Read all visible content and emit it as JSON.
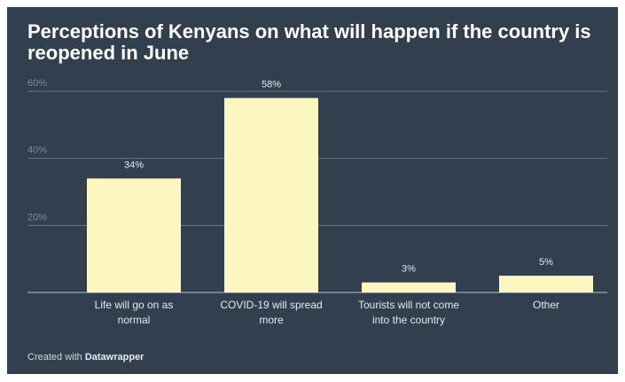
{
  "chart_data": {
    "type": "bar",
    "title": "Perceptions of Kenyans on what will happen if the country is reopened in June",
    "categories": [
      [
        "Life will go on as",
        "normal"
      ],
      [
        "COVID-19 will spread",
        "more"
      ],
      [
        "Tourists will not come",
        "into the country"
      ],
      [
        "Other"
      ]
    ],
    "values": [
      34,
      58,
      3,
      5
    ],
    "value_labels": [
      "34%",
      "58%",
      "3%",
      "5%"
    ],
    "ylim": [
      0,
      60
    ],
    "yticks": [
      20,
      40,
      60
    ],
    "ytick_labels": [
      "20%",
      "40%",
      "60%"
    ],
    "grid": true,
    "xlabel": "",
    "ylabel": ""
  },
  "colors": {
    "background": "#323f4e",
    "bar": "#fcf7c1",
    "grid": "#6a7583",
    "baseline": "#b8bec6",
    "tick_label": "#7f8996",
    "value_label": "#e6e9ec",
    "category_label": "#e6e9ec"
  },
  "footer": {
    "prefix": "Created with",
    "brand": "Datawrapper"
  }
}
